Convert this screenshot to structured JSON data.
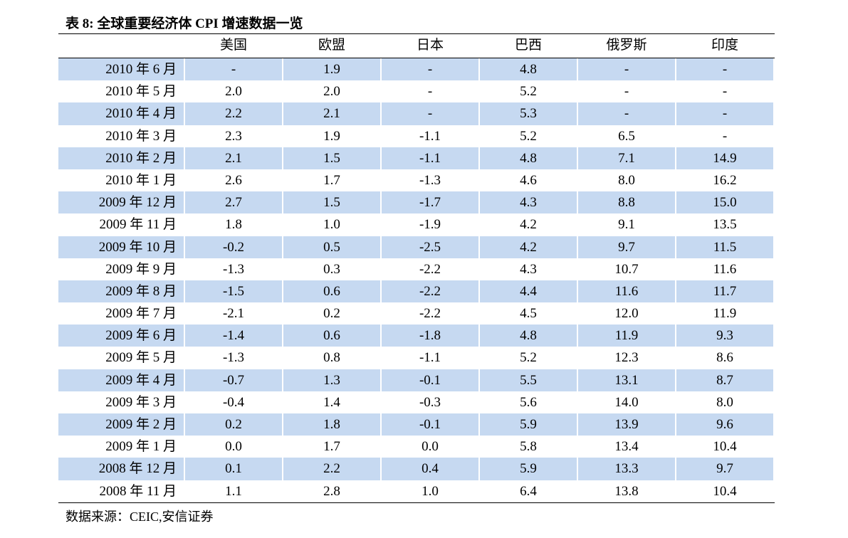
{
  "title": "表 8:  全球重要经济体 CPI 增速数据一览",
  "table": {
    "header": [
      "美国",
      "欧盟",
      "日本",
      "巴西",
      "俄罗斯",
      "印度"
    ],
    "rows": [
      [
        "2010 年 6 月",
        "-",
        "1.9",
        "-",
        "4.8",
        "-",
        "-"
      ],
      [
        "2010 年 5 月",
        "2.0",
        "2.0",
        "-",
        "5.2",
        "-",
        "-"
      ],
      [
        "2010 年 4 月",
        "2.2",
        "2.1",
        "-",
        "5.3",
        "-",
        "-"
      ],
      [
        "2010 年 3 月",
        "2.3",
        "1.9",
        "-1.1",
        "5.2",
        "6.5",
        "-"
      ],
      [
        "2010 年 2 月",
        "2.1",
        "1.5",
        "-1.1",
        "4.8",
        "7.1",
        "14.9"
      ],
      [
        "2010 年 1 月",
        "2.6",
        "1.7",
        "-1.3",
        "4.6",
        "8.0",
        "16.2"
      ],
      [
        "2009 年 12 月",
        "2.7",
        "1.5",
        "-1.7",
        "4.3",
        "8.8",
        "15.0"
      ],
      [
        "2009 年 11 月",
        "1.8",
        "1.0",
        "-1.9",
        "4.2",
        "9.1",
        "13.5"
      ],
      [
        "2009 年 10 月",
        "-0.2",
        "0.5",
        "-2.5",
        "4.2",
        "9.7",
        "11.5"
      ],
      [
        "2009 年 9 月",
        "-1.3",
        "0.3",
        "-2.2",
        "4.3",
        "10.7",
        "11.6"
      ],
      [
        "2009 年 8 月",
        "-1.5",
        "0.6",
        "-2.2",
        "4.4",
        "11.6",
        "11.7"
      ],
      [
        "2009 年 7 月",
        "-2.1",
        "0.2",
        "-2.2",
        "4.5",
        "12.0",
        "11.9"
      ],
      [
        "2009 年 6 月",
        "-1.4",
        "0.6",
        "-1.8",
        "4.8",
        "11.9",
        "9.3"
      ],
      [
        "2009 年 5 月",
        "-1.3",
        "0.8",
        "-1.1",
        "5.2",
        "12.3",
        "8.6"
      ],
      [
        "2009 年 4 月",
        "-0.7",
        "1.3",
        "-0.1",
        "5.5",
        "13.1",
        "8.7"
      ],
      [
        "2009 年 3 月",
        "-0.4",
        "1.4",
        "-0.3",
        "5.6",
        "14.0",
        "8.0"
      ],
      [
        "2009 年 2 月",
        "0.2",
        "1.8",
        "-0.1",
        "5.9",
        "13.9",
        "9.6"
      ],
      [
        "2009 年 1 月",
        "0.0",
        "1.7",
        "0.0",
        "5.8",
        "13.4",
        "10.4"
      ],
      [
        "2008 年 12 月",
        "0.1",
        "2.2",
        "0.4",
        "5.9",
        "13.3",
        "9.7"
      ],
      [
        "2008 年 11 月",
        "1.1",
        "2.8",
        "1.0",
        "6.4",
        "13.8",
        "10.4"
      ]
    ]
  },
  "source": "数据来源：CEIC,安信证券"
}
